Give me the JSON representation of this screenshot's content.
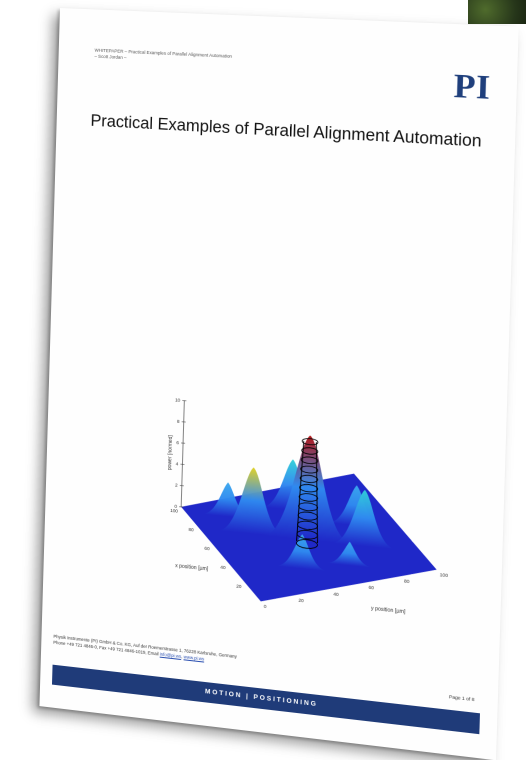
{
  "document": {
    "header_line1": "WHITEPAPER – Practical Examples of Parallel Alignment Automation",
    "header_line2": "– Scott Jordan –",
    "logo": "PI",
    "title": "Practical Examples of Parallel Alignment Automation",
    "footer_address_line1": "Physik Instrumente (PI) GmbH & Co. KG, Auf der Roemerstrasse 1, 76228 Karlsruhe, Germany",
    "footer_address_line2_prefix": "Phone +49 721 4846-0, Fax +49 721 4846-1019, Email ",
    "footer_email": "info@pi.ws",
    "footer_web": "www.pi.ws",
    "page_number": "Page 1 of 8",
    "footer_bar_text": "MOTION | POSITIONING"
  },
  "chart_data": {
    "type": "surface",
    "zlabel": "power [normed]",
    "xlabel": "x position [µm]",
    "ylabel": "y position [µm]",
    "z_ticks": [
      "10",
      "8",
      "6",
      "4",
      "2",
      "0"
    ],
    "x_ticks": [
      "20",
      "40",
      "60",
      "80",
      "100"
    ],
    "y_ticks": [
      "0",
      "20",
      "40",
      "60",
      "80",
      "100"
    ],
    "zlim": [
      0,
      10
    ],
    "xlim": [
      0,
      100
    ],
    "ylim": [
      0,
      100
    ],
    "peaks": [
      {
        "x": 50,
        "y": 50,
        "z": 9.5
      },
      {
        "x": 65,
        "y": 25,
        "z": 6.0
      },
      {
        "x": 35,
        "y": 75,
        "z": 5.0
      },
      {
        "x": 80,
        "y": 55,
        "z": 4.5
      },
      {
        "x": 25,
        "y": 35,
        "z": 3.0
      },
      {
        "x": 55,
        "y": 80,
        "z": 3.5
      },
      {
        "x": 85,
        "y": 20,
        "z": 3.0
      },
      {
        "x": 20,
        "y": 60,
        "z": 2.0
      }
    ],
    "colors": {
      "base": "#1f28c8",
      "peak": "#b01010",
      "overlay": "#000000"
    }
  }
}
